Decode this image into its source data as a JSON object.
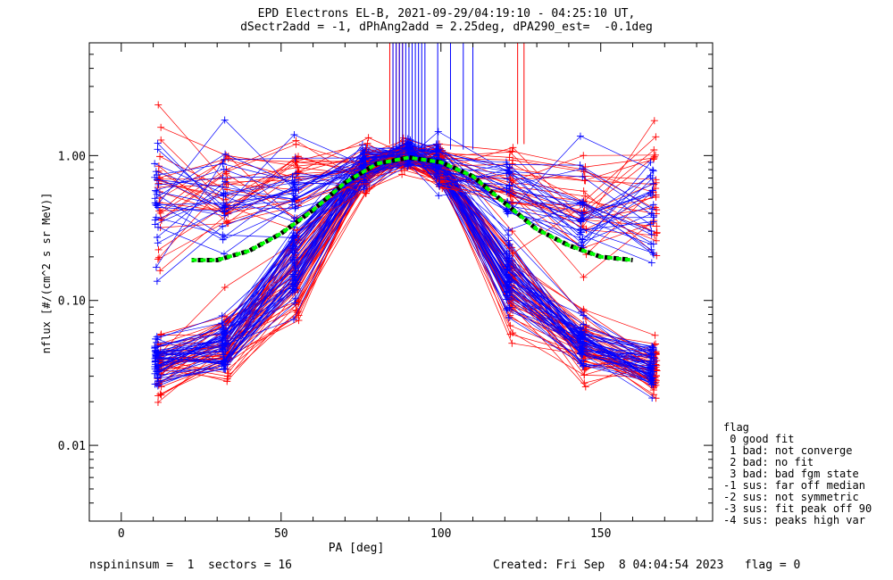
{
  "title_line1": "EPD Electrons EL-B, 2021-09-29/04:19:10 - 04:25:10 UT,",
  "title_line2": "dSectr2add = -1, dPhAng2add = 2.25deg, dPA290_est=  -0.1deg",
  "footer": {
    "left": "nspininsum =  1  sectors = 16",
    "right": "Created: Fri Sep  8 04:04:54 2023   flag = 0"
  },
  "legend": {
    "title": "flag",
    "items": [
      " 0 good fit",
      " 1 bad: not converge",
      " 2 bad: no fit",
      " 3 bad: bad fgm state",
      "-1 sus: far off median",
      "-2 sus: not symmetric",
      "-3 sus: fit peak off 90",
      "-4 sus: peaks high var"
    ]
  },
  "colors": {
    "red": "#ff0000",
    "blue": "#0000ff",
    "fit_green": "#00ff00",
    "fit_black": "#000000"
  },
  "chart_data": {
    "type": "line",
    "xlabel": "PA [deg]",
    "ylabel": "nflux [#/(cm^2 s sr MeV)]",
    "xlim": [
      -10,
      185
    ],
    "ylim": [
      0.003,
      6
    ],
    "yscale": "log",
    "x_ticks": [
      0,
      50,
      100,
      150
    ],
    "y_ticks": [
      0.01,
      0.1,
      1.0
    ],
    "y_tick_labels": [
      "0.01",
      "0.10",
      "1.00"
    ],
    "series": [
      {
        "color": "red",
        "x": [
          12,
          33,
          55,
          77,
          88,
          100,
          122,
          145,
          167
        ],
        "values": [
          0.035,
          0.045,
          0.15,
          0.8,
          1.0,
          0.8,
          0.12,
          0.045,
          0.035
        ],
        "spread": [
          0.2,
          0.25,
          0.3,
          0.12,
          0.08,
          0.12,
          0.3,
          0.25,
          0.2
        ],
        "count": 45
      },
      {
        "color": "blue",
        "x": [
          11,
          32,
          54,
          76,
          90,
          99,
          121,
          144,
          166
        ],
        "values": [
          0.037,
          0.05,
          0.17,
          0.85,
          1.05,
          0.9,
          0.15,
          0.05,
          0.035
        ],
        "spread": [
          0.18,
          0.22,
          0.28,
          0.12,
          0.08,
          0.12,
          0.28,
          0.22,
          0.2
        ],
        "count": 45
      },
      {
        "color": "red",
        "x": [
          12,
          33,
          55,
          77,
          88,
          100,
          122,
          145,
          167
        ],
        "values": [
          0.55,
          0.6,
          0.7,
          0.85,
          1.0,
          0.85,
          0.6,
          0.45,
          0.5
        ],
        "spread": [
          0.45,
          0.4,
          0.35,
          0.15,
          0.1,
          0.2,
          0.35,
          0.4,
          0.45
        ],
        "count": 25
      },
      {
        "color": "blue",
        "x": [
          11,
          32,
          54,
          76,
          90,
          99,
          121,
          144,
          166
        ],
        "values": [
          0.45,
          0.5,
          0.6,
          0.85,
          1.05,
          0.9,
          0.6,
          0.45,
          0.45
        ],
        "spread": [
          0.45,
          0.4,
          0.35,
          0.15,
          0.1,
          0.2,
          0.35,
          0.4,
          0.45
        ],
        "count": 25
      }
    ],
    "spikes": [
      {
        "color": "red",
        "x": [
          84,
          85,
          86,
          87,
          88,
          124,
          126
        ],
        "from": 1.2
      },
      {
        "color": "blue",
        "x": [
          85,
          86,
          87,
          88,
          89,
          90,
          91,
          92,
          93,
          94,
          95,
          99,
          103,
          107,
          110
        ],
        "from": 1.1
      }
    ],
    "fit_curve": {
      "x": [
        22,
        30,
        40,
        50,
        60,
        70,
        80,
        90,
        100,
        110,
        120,
        130,
        140,
        150,
        160
      ],
      "values": [
        0.19,
        0.19,
        0.22,
        0.29,
        0.42,
        0.65,
        0.88,
        0.97,
        0.9,
        0.72,
        0.47,
        0.31,
        0.24,
        0.2,
        0.19
      ]
    }
  }
}
